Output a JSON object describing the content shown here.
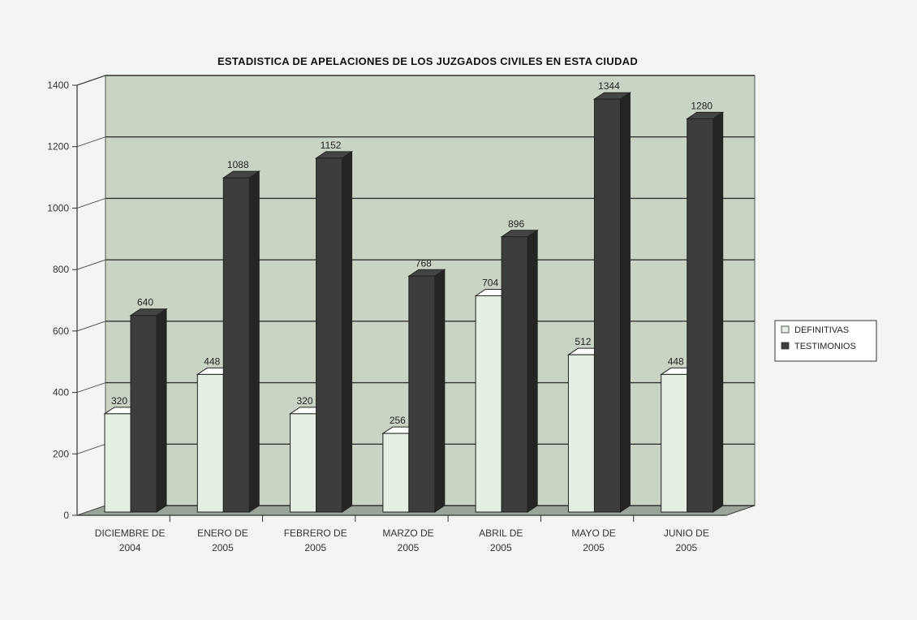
{
  "chart_data": {
    "type": "bar",
    "title": "ESTADISTICA DE APELACIONES DE LOS JUZGADOS CIVILES EN ESTA CIUDAD",
    "categories": [
      [
        "DICIEMBRE DE",
        "2004"
      ],
      [
        "ENERO DE",
        "2005"
      ],
      [
        "FEBRERO DE",
        "2005"
      ],
      [
        "MARZO DE",
        "2005"
      ],
      [
        "ABRIL DE",
        "2005"
      ],
      [
        "MAYO DE",
        "2005"
      ],
      [
        "JUNIO DE",
        "2005"
      ]
    ],
    "series": [
      {
        "name": "DEFINITIVAS",
        "values": [
          320,
          448,
          320,
          256,
          704,
          512,
          448
        ],
        "color": "#e6efe4"
      },
      {
        "name": "TESTIMONIOS",
        "values": [
          640,
          1088,
          1152,
          768,
          896,
          1344,
          1280
        ],
        "color": "#3d3d3b"
      }
    ],
    "data_labels": [
      [
        "320",
        "448",
        "320",
        "256",
        "704",
        "512",
        "448"
      ],
      [
        "640",
        "1088",
        "1152",
        "768",
        "896",
        "1344",
        "1280"
      ]
    ],
    "ylim": [
      0,
      1400
    ],
    "yticks": [
      "0",
      "200",
      "400",
      "600",
      "800",
      "1000",
      "1200",
      "1400"
    ],
    "grid": true,
    "legend_position": "right",
    "style": "3d-column",
    "wall_color": "#c9d4c4"
  }
}
